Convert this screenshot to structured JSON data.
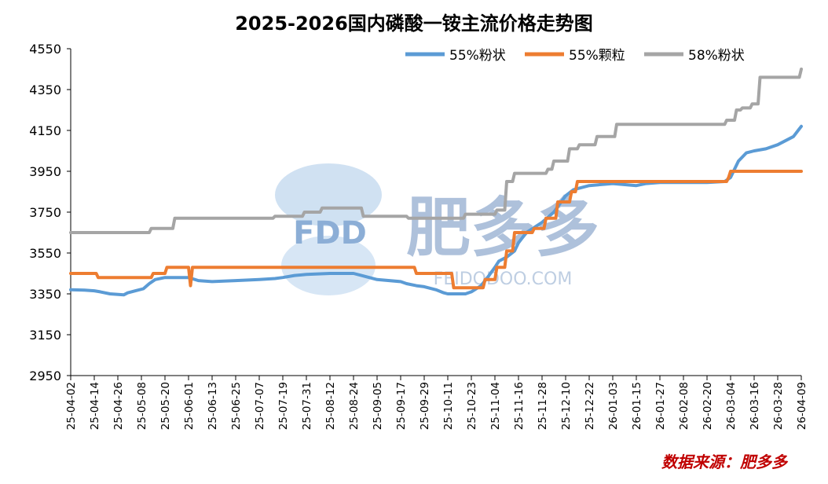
{
  "title": "2025-2026国内磷酸一铵主流价格走势图",
  "source": "数据来源：肥多多",
  "watermark": {
    "brand": "FDD",
    "name": "肥多多",
    "site": "FEIDODOO.COM"
  },
  "colors": {
    "s1": "#5b9bd5",
    "s2": "#ed7d31",
    "s3": "#a5a5a5",
    "source": "#c00000",
    "axis": "#000000"
  },
  "chart_data": {
    "type": "line",
    "title": "2025-2026国内磷酸一铵主流价格走势图",
    "xlabel": "",
    "ylabel": "",
    "ylim": [
      2950,
      4550
    ],
    "yticks": [
      2950,
      3150,
      3350,
      3550,
      3750,
      3950,
      4150,
      4350,
      4550
    ],
    "categories": [
      "25-04-02",
      "25-04-14",
      "25-04-26",
      "25-05-08",
      "25-05-20",
      "25-06-01",
      "25-06-13",
      "25-06-25",
      "25-07-07",
      "25-07-19",
      "25-07-31",
      "25-08-12",
      "25-08-24",
      "25-09-05",
      "25-09-17",
      "25-09-29",
      "25-10-11",
      "25-10-23",
      "25-11-04",
      "25-11-16",
      "25-11-28",
      "25-12-10",
      "25-12-22",
      "26-01-03",
      "26-01-15",
      "26-01-27",
      "26-02-08",
      "26-02-20",
      "26-03-04",
      "26-03-16",
      "26-03-28",
      "26-04-09"
    ],
    "legend_position": "top-right",
    "grid": false,
    "series": [
      {
        "name": "55%粉状",
        "x": [
          "25-04-02",
          "25-04-09",
          "25-04-14",
          "25-04-17",
          "25-04-22",
          "25-04-29",
          "25-05-01",
          "25-05-05",
          "25-05-09",
          "25-05-12",
          "25-05-15",
          "25-05-20",
          "25-06-01",
          "25-06-06",
          "25-06-13",
          "25-06-25",
          "25-07-07",
          "25-07-15",
          "25-07-19",
          "25-07-25",
          "25-07-31",
          "25-08-12",
          "25-08-24",
          "25-08-28",
          "25-09-01",
          "25-09-05",
          "25-09-17",
          "25-09-20",
          "25-09-25",
          "25-09-29",
          "25-10-05",
          "25-10-09",
          "25-10-11",
          "25-10-20",
          "25-10-23",
          "25-10-28",
          "25-11-01",
          "25-11-04",
          "25-11-06",
          "25-11-10",
          "25-11-14",
          "25-11-16",
          "25-11-20",
          "25-11-28",
          "25-12-04",
          "25-12-10",
          "25-12-14",
          "25-12-22",
          "26-01-03",
          "26-01-15",
          "26-01-20",
          "26-01-27",
          "26-02-08",
          "26-02-20",
          "26-03-01",
          "26-03-04",
          "26-03-08",
          "26-03-12",
          "26-03-16",
          "26-03-22",
          "26-03-28",
          "26-04-05",
          "26-04-09"
        ],
        "values": [
          3370,
          3368,
          3365,
          3360,
          3350,
          3345,
          3355,
          3365,
          3375,
          3400,
          3420,
          3430,
          3430,
          3415,
          3410,
          3415,
          3420,
          3425,
          3430,
          3440,
          3445,
          3450,
          3450,
          3440,
          3430,
          3420,
          3410,
          3400,
          3390,
          3385,
          3370,
          3355,
          3350,
          3350,
          3360,
          3390,
          3440,
          3480,
          3510,
          3530,
          3560,
          3600,
          3650,
          3700,
          3750,
          3830,
          3860,
          3880,
          3890,
          3880,
          3890,
          3895,
          3895,
          3895,
          3900,
          3920,
          4000,
          4040,
          4050,
          4060,
          4080,
          4120,
          4170
        ]
      },
      {
        "name": "55%颗粒",
        "x": [
          "25-04-02",
          "25-04-15",
          "25-04-16",
          "25-05-13",
          "25-05-14",
          "25-05-20",
          "25-05-21",
          "25-06-01",
          "25-06-02",
          "25-06-03",
          "25-06-04",
          "25-09-24",
          "25-09-25",
          "25-10-13",
          "25-10-14",
          "25-10-29",
          "25-10-30",
          "25-11-04",
          "25-11-05",
          "25-11-09",
          "25-11-10",
          "25-11-13",
          "25-11-14",
          "25-11-23",
          "25-11-24",
          "25-11-29",
          "25-11-30",
          "25-12-05",
          "25-12-06",
          "25-12-12",
          "25-12-13",
          "25-12-15",
          "25-12-16",
          "26-03-02",
          "26-03-03",
          "26-03-04",
          "26-04-09"
        ],
        "values": [
          3450,
          3450,
          3430,
          3430,
          3450,
          3450,
          3480,
          3480,
          3390,
          3480,
          3480,
          3480,
          3450,
          3450,
          3380,
          3380,
          3420,
          3420,
          3480,
          3480,
          3560,
          3560,
          3650,
          3650,
          3670,
          3670,
          3720,
          3720,
          3800,
          3800,
          3850,
          3850,
          3900,
          3900,
          3920,
          3950,
          3950
        ]
      },
      {
        "name": "58%粉状",
        "x": [
          "25-04-02",
          "25-05-12",
          "25-05-13",
          "25-05-24",
          "25-05-25",
          "25-07-14",
          "25-07-15",
          "25-07-29",
          "25-07-30",
          "25-08-07",
          "25-08-08",
          "25-08-28",
          "25-08-29",
          "25-09-20",
          "25-09-21",
          "25-10-19",
          "25-10-20",
          "25-11-04",
          "25-11-05",
          "25-11-09",
          "25-11-10",
          "25-11-13",
          "25-11-14",
          "25-11-30",
          "25-12-01",
          "25-12-03",
          "25-12-04",
          "25-12-11",
          "25-12-12",
          "25-12-16",
          "25-12-17",
          "25-12-25",
          "25-12-26",
          "26-01-04",
          "26-01-05",
          "26-03-01",
          "26-03-02",
          "26-03-06",
          "26-03-07",
          "26-03-09",
          "26-03-10",
          "26-03-14",
          "26-03-15",
          "26-03-18",
          "26-03-19",
          "26-04-08",
          "26-04-09"
        ],
        "values": [
          3650,
          3650,
          3670,
          3670,
          3720,
          3720,
          3730,
          3730,
          3750,
          3750,
          3770,
          3770,
          3730,
          3730,
          3720,
          3720,
          3740,
          3740,
          3760,
          3760,
          3900,
          3900,
          3940,
          3940,
          3960,
          3960,
          4000,
          4000,
          4060,
          4060,
          4080,
          4080,
          4120,
          4120,
          4180,
          4180,
          4200,
          4200,
          4250,
          4250,
          4260,
          4260,
          4280,
          4280,
          4410,
          4410,
          4450
        ]
      }
    ]
  }
}
